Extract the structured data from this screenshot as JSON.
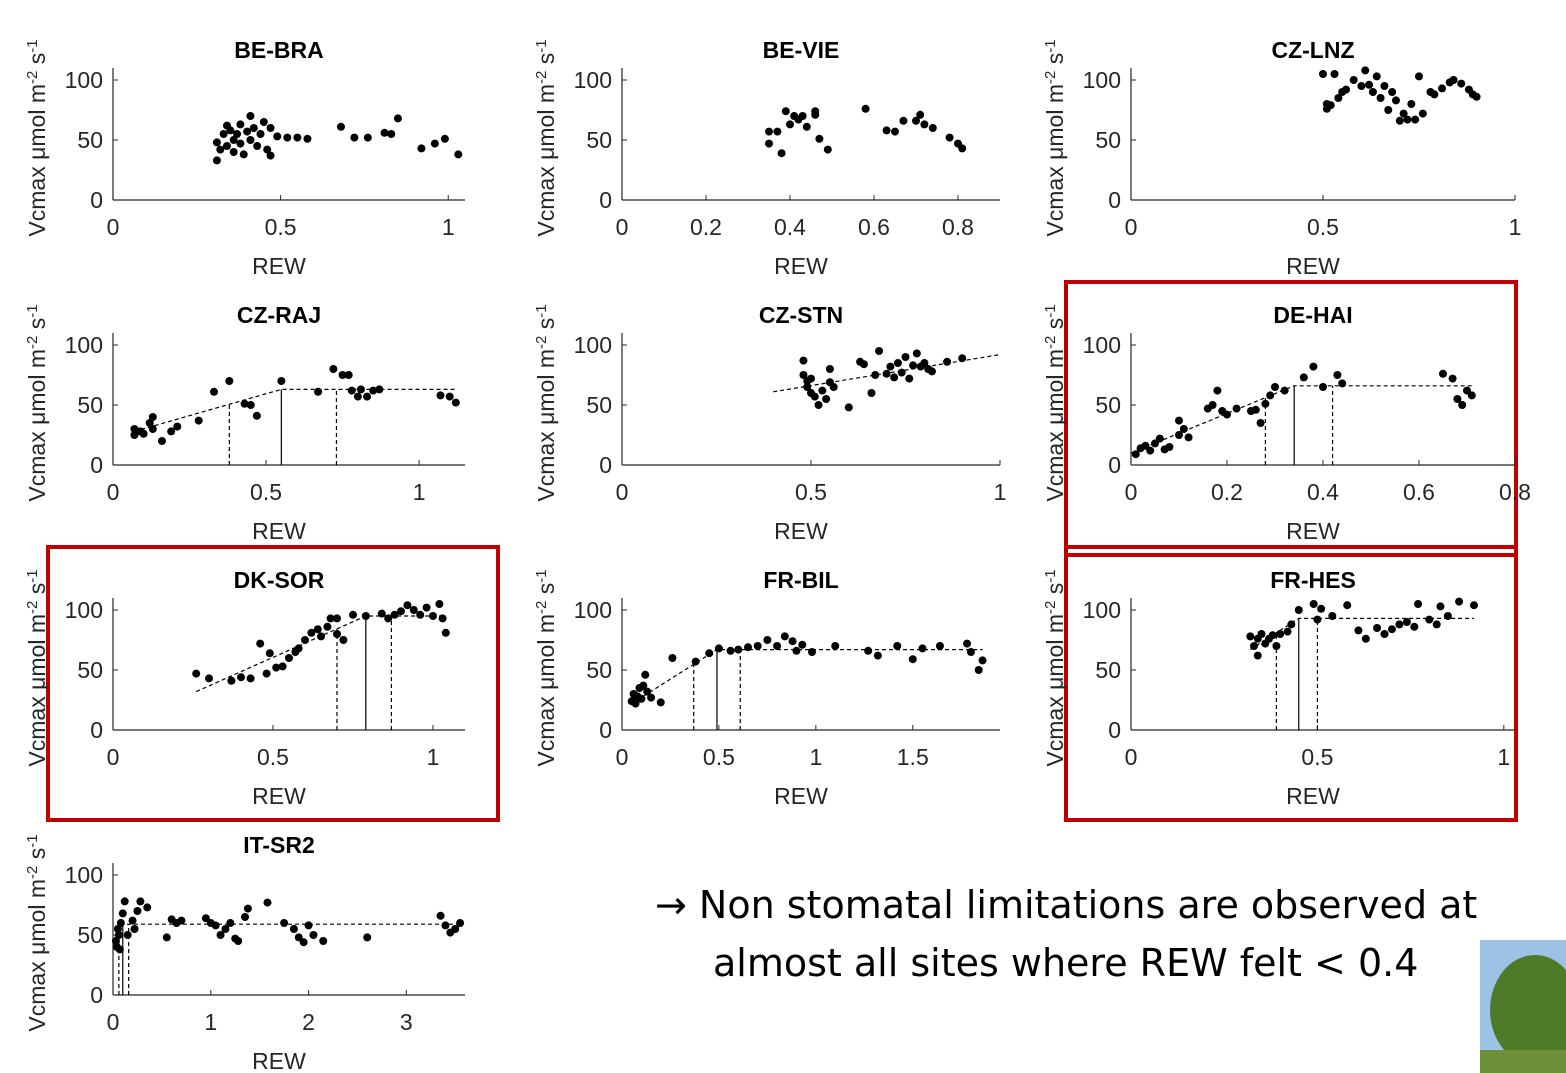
{
  "chart_data": [
    {
      "type": "scatter",
      "title": "BE-BRA",
      "xlabel": "REW",
      "ylabel": [
        {
          "text": "Vcmax μmol m"
        },
        {
          "text": "-2",
          "sup": true
        },
        {
          "text": " s"
        },
        {
          "text": "-1",
          "sup": true
        }
      ],
      "xlim": [
        0,
        1.05
      ],
      "xticks": [
        0,
        0.5,
        1
      ],
      "ylim": [
        0,
        110
      ],
      "yticks": [
        0,
        50,
        100
      ],
      "color": "#000000",
      "highlight": false,
      "x": [
        0.31,
        0.31,
        0.32,
        0.33,
        0.34,
        0.34,
        0.35,
        0.36,
        0.36,
        0.37,
        0.38,
        0.38,
        0.39,
        0.4,
        0.41,
        0.41,
        0.42,
        0.43,
        0.44,
        0.45,
        0.46,
        0.47,
        0.47,
        0.49,
        0.52,
        0.55,
        0.58,
        0.68,
        0.72,
        0.76,
        0.81,
        0.83,
        0.85,
        0.92,
        0.96,
        0.99,
        1.03
      ],
      "y": [
        33,
        48,
        42,
        55,
        62,
        45,
        58,
        50,
        40,
        55,
        63,
        47,
        38,
        57,
        70,
        50,
        60,
        45,
        55,
        65,
        42,
        60,
        37,
        53,
        52,
        52,
        51,
        61,
        52,
        52,
        56,
        55,
        68,
        43,
        47,
        51,
        38
      ]
    },
    {
      "type": "scatter",
      "title": "BE-VIE",
      "xlabel": "REW",
      "ylabel": [
        {
          "text": "Vcmax μmol m"
        },
        {
          "text": "-2",
          "sup": true
        },
        {
          "text": " s"
        },
        {
          "text": "-1",
          "sup": true
        }
      ],
      "xlim": [
        0,
        0.9
      ],
      "xticks": [
        0,
        0.2,
        0.4,
        0.6,
        0.8
      ],
      "ylim": [
        0,
        110
      ],
      "yticks": [
        0,
        50,
        100
      ],
      "color": "#000000",
      "highlight": false,
      "x": [
        0.35,
        0.35,
        0.37,
        0.38,
        0.39,
        0.4,
        0.41,
        0.42,
        0.43,
        0.44,
        0.46,
        0.46,
        0.47,
        0.49,
        0.58,
        0.63,
        0.65,
        0.67,
        0.7,
        0.71,
        0.72,
        0.74,
        0.78,
        0.8,
        0.81
      ],
      "y": [
        57,
        47,
        57,
        39,
        74,
        63,
        70,
        67,
        70,
        61,
        74,
        71,
        51,
        42,
        76,
        58,
        57,
        66,
        66,
        71,
        63,
        60,
        52,
        47,
        43
      ]
    },
    {
      "type": "scatter",
      "title": "CZ-LNZ",
      "xlabel": "REW",
      "ylabel": [
        {
          "text": "Vcmax μmol m"
        },
        {
          "text": "-2",
          "sup": true
        },
        {
          "text": " s"
        },
        {
          "text": "-1",
          "sup": true
        }
      ],
      "xlim": [
        0,
        1.0
      ],
      "xticks": [
        0,
        0.5,
        1
      ],
      "ylim": [
        0,
        110
      ],
      "yticks": [
        0,
        50,
        100
      ],
      "color": "#000000",
      "highlight": false,
      "x": [
        0.5,
        0.51,
        0.51,
        0.52,
        0.53,
        0.54,
        0.55,
        0.56,
        0.58,
        0.6,
        0.61,
        0.62,
        0.63,
        0.64,
        0.65,
        0.66,
        0.67,
        0.68,
        0.69,
        0.7,
        0.71,
        0.72,
        0.73,
        0.74,
        0.75,
        0.76,
        0.78,
        0.79,
        0.81,
        0.83,
        0.84,
        0.86,
        0.88,
        0.89,
        0.9
      ],
      "y": [
        105,
        80,
        76,
        79,
        105,
        85,
        90,
        92,
        100,
        95,
        108,
        96,
        90,
        103,
        85,
        95,
        75,
        90,
        83,
        66,
        72,
        67,
        80,
        67,
        103,
        72,
        90,
        88,
        93,
        98,
        100,
        97,
        92,
        88,
        86
      ]
    },
    {
      "type": "scatter",
      "title": "CZ-RAJ",
      "xlabel": "REW",
      "ylabel": [
        {
          "text": "Vcmax μmol m"
        },
        {
          "text": "-2",
          "sup": true
        },
        {
          "text": " s"
        },
        {
          "text": "-1",
          "sup": true
        }
      ],
      "xlim": [
        0,
        1.15
      ],
      "xticks": [
        0,
        0.5,
        1
      ],
      "ylim": [
        0,
        110
      ],
      "yticks": [
        0,
        50,
        100
      ],
      "color": "#000000",
      "highlight": false,
      "x": [
        0.07,
        0.07,
        0.09,
        0.1,
        0.12,
        0.13,
        0.13,
        0.16,
        0.19,
        0.21,
        0.28,
        0.33,
        0.38,
        0.43,
        0.45,
        0.47,
        0.55,
        0.67,
        0.72,
        0.75,
        0.77,
        0.78,
        0.8,
        0.81,
        0.83,
        0.85,
        0.87,
        1.07,
        1.1,
        1.12
      ],
      "y": [
        30,
        25,
        28,
        26,
        35,
        40,
        30,
        20,
        28,
        32,
        37,
        61,
        70,
        51,
        50,
        41,
        70,
        61,
        80,
        75,
        75,
        62,
        57,
        63,
        57,
        62,
        63,
        58,
        57,
        52
      ],
      "fit": {
        "x": [
          0.07,
          0.55,
          1.12
        ],
        "y": [
          28,
          63,
          63
        ]
      },
      "thresholds": [
        {
          "x": 0.38,
          "style": "dashed"
        },
        {
          "x": 0.55,
          "style": "solid"
        },
        {
          "x": 0.73,
          "style": "dashed"
        }
      ]
    },
    {
      "type": "scatter",
      "title": "CZ-STN",
      "xlabel": "REW",
      "ylabel": [
        {
          "text": "Vcmax μmol m"
        },
        {
          "text": "-2",
          "sup": true
        },
        {
          "text": " s"
        },
        {
          "text": "-1",
          "sup": true
        }
      ],
      "xlim": [
        0,
        1.0
      ],
      "xticks": [
        0,
        0.5,
        1
      ],
      "ylim": [
        0,
        110
      ],
      "yticks": [
        0,
        50,
        100
      ],
      "color": "#000000",
      "highlight": false,
      "x": [
        0.48,
        0.48,
        0.49,
        0.49,
        0.5,
        0.5,
        0.51,
        0.52,
        0.53,
        0.54,
        0.55,
        0.55,
        0.56,
        0.6,
        0.63,
        0.64,
        0.66,
        0.67,
        0.68,
        0.7,
        0.71,
        0.72,
        0.73,
        0.74,
        0.75,
        0.76,
        0.77,
        0.78,
        0.79,
        0.8,
        0.81,
        0.82,
        0.86,
        0.9
      ],
      "y": [
        87,
        75,
        70,
        65,
        72,
        60,
        57,
        50,
        62,
        55,
        69,
        80,
        65,
        48,
        86,
        84,
        60,
        75,
        95,
        76,
        82,
        73,
        85,
        77,
        90,
        72,
        83,
        93,
        82,
        85,
        80,
        78,
        86,
        89
      ],
      "fit": {
        "x": [
          0.4,
          1.0
        ],
        "y": [
          61,
          92
        ]
      }
    },
    {
      "type": "scatter",
      "title": "DE-HAI",
      "xlabel": "REW",
      "ylabel": [
        {
          "text": "Vcmax μmol m"
        },
        {
          "text": "-2",
          "sup": true
        },
        {
          "text": " s"
        },
        {
          "text": "-1",
          "sup": true
        }
      ],
      "xlim": [
        0,
        0.8
      ],
      "xticks": [
        0,
        0.2,
        0.4,
        0.6,
        0.8
      ],
      "ylim": [
        0,
        110
      ],
      "yticks": [
        0,
        50,
        100
      ],
      "color": "#000000",
      "highlight": true,
      "x": [
        0.01,
        0.02,
        0.03,
        0.04,
        0.05,
        0.06,
        0.07,
        0.08,
        0.1,
        0.1,
        0.11,
        0.12,
        0.16,
        0.17,
        0.18,
        0.19,
        0.2,
        0.22,
        0.25,
        0.26,
        0.27,
        0.28,
        0.29,
        0.3,
        0.32,
        0.36,
        0.38,
        0.4,
        0.43,
        0.44,
        0.65,
        0.67,
        0.68,
        0.69,
        0.7,
        0.71
      ],
      "y": [
        9,
        14,
        16,
        12,
        18,
        22,
        13,
        15,
        25,
        37,
        30,
        23,
        47,
        50,
        62,
        45,
        42,
        47,
        45,
        46,
        35,
        51,
        58,
        65,
        62,
        73,
        82,
        65,
        75,
        68,
        76,
        72,
        55,
        50,
        62,
        58
      ],
      "fit": {
        "x": [
          0,
          0.34,
          0.71
        ],
        "y": [
          10,
          66,
          66
        ]
      },
      "thresholds": [
        {
          "x": 0.28,
          "style": "dashed"
        },
        {
          "x": 0.34,
          "style": "solid"
        },
        {
          "x": 0.42,
          "style": "dashed"
        }
      ]
    },
    {
      "type": "scatter",
      "title": "DK-SOR",
      "xlabel": "REW",
      "ylabel": [
        {
          "text": "Vcmax μmol m"
        },
        {
          "text": "-2",
          "sup": true
        },
        {
          "text": " s"
        },
        {
          "text": "-1",
          "sup": true
        }
      ],
      "xlim": [
        0,
        1.1
      ],
      "xticks": [
        0,
        0.5,
        1
      ],
      "ylim": [
        0,
        110
      ],
      "yticks": [
        0,
        50,
        100
      ],
      "color": "#000000",
      "highlight": true,
      "x": [
        0.26,
        0.3,
        0.37,
        0.4,
        0.43,
        0.46,
        0.48,
        0.49,
        0.51,
        0.53,
        0.55,
        0.57,
        0.58,
        0.6,
        0.62,
        0.64,
        0.65,
        0.67,
        0.68,
        0.7,
        0.7,
        0.72,
        0.75,
        0.79,
        0.84,
        0.86,
        0.88,
        0.9,
        0.92,
        0.94,
        0.96,
        0.98,
        1.0,
        1.02,
        1.03,
        1.04
      ],
      "y": [
        47,
        43,
        41,
        44,
        43,
        72,
        47,
        64,
        52,
        53,
        60,
        65,
        68,
        75,
        81,
        84,
        78,
        86,
        93,
        80,
        93,
        75,
        96,
        95,
        97,
        93,
        96,
        99,
        104,
        100,
        96,
        102,
        95,
        105,
        93,
        81
      ],
      "fit": {
        "x": [
          0.26,
          0.79,
          1.04
        ],
        "y": [
          32,
          95,
          95
        ]
      },
      "thresholds": [
        {
          "x": 0.7,
          "style": "dashed"
        },
        {
          "x": 0.79,
          "style": "solid"
        },
        {
          "x": 0.87,
          "style": "dashed"
        }
      ]
    },
    {
      "type": "scatter",
      "title": "FR-BIL",
      "xlabel": "REW",
      "ylabel": [
        {
          "text": "Vcmax μmol m"
        },
        {
          "text": "-2",
          "sup": true
        },
        {
          "text": " s"
        },
        {
          "text": "-1",
          "sup": true
        }
      ],
      "xlim": [
        0,
        1.95
      ],
      "xticks": [
        0,
        0.5,
        1,
        1.5
      ],
      "ylim": [
        0,
        110
      ],
      "yticks": [
        0,
        50,
        100
      ],
      "color": "#000000",
      "highlight": false,
      "x": [
        0.05,
        0.06,
        0.07,
        0.08,
        0.09,
        0.1,
        0.11,
        0.12,
        0.13,
        0.15,
        0.2,
        0.26,
        0.38,
        0.45,
        0.5,
        0.56,
        0.6,
        0.65,
        0.7,
        0.75,
        0.8,
        0.84,
        0.88,
        0.9,
        0.93,
        0.98,
        1.1,
        1.27,
        1.32,
        1.42,
        1.5,
        1.55,
        1.64,
        1.78,
        1.8,
        1.84,
        1.86
      ],
      "y": [
        24,
        30,
        22,
        28,
        35,
        26,
        37,
        46,
        32,
        27,
        23,
        60,
        57,
        64,
        68,
        66,
        67,
        69,
        70,
        75,
        70,
        78,
        74,
        66,
        71,
        65,
        70,
        66,
        62,
        70,
        59,
        68,
        70,
        72,
        65,
        50,
        58
      ],
      "fit": {
        "x": [
          0.05,
          0.49,
          1.86
        ],
        "y": [
          22,
          67,
          67
        ]
      },
      "thresholds": [
        {
          "x": 0.37,
          "style": "dashed"
        },
        {
          "x": 0.49,
          "style": "solid"
        },
        {
          "x": 0.61,
          "style": "dashed"
        }
      ]
    },
    {
      "type": "scatter",
      "title": "FR-HES",
      "xlabel": "REW",
      "ylabel": [
        {
          "text": "Vcmax μmol m"
        },
        {
          "text": "-2",
          "sup": true
        },
        {
          "text": " s"
        },
        {
          "text": "-1",
          "sup": true
        }
      ],
      "xlim": [
        0,
        1.03
      ],
      "xticks": [
        0,
        0.5,
        1
      ],
      "ylim": [
        0,
        110
      ],
      "yticks": [
        0,
        50,
        100
      ],
      "color": "#000000",
      "highlight": true,
      "x": [
        0.32,
        0.33,
        0.34,
        0.34,
        0.35,
        0.36,
        0.37,
        0.38,
        0.39,
        0.4,
        0.42,
        0.43,
        0.45,
        0.49,
        0.5,
        0.51,
        0.54,
        0.58,
        0.61,
        0.63,
        0.66,
        0.68,
        0.7,
        0.72,
        0.74,
        0.76,
        0.77,
        0.8,
        0.82,
        0.83,
        0.85,
        0.88,
        0.92
      ],
      "y": [
        78,
        70,
        62,
        76,
        80,
        72,
        76,
        79,
        70,
        80,
        82,
        88,
        100,
        105,
        92,
        101,
        95,
        104,
        83,
        76,
        85,
        80,
        84,
        88,
        90,
        86,
        105,
        92,
        88,
        103,
        95,
        107,
        104
      ],
      "fit": {
        "x": [
          0.32,
          0.45,
          0.92
        ],
        "y": [
          67,
          93,
          93
        ]
      },
      "thresholds": [
        {
          "x": 0.39,
          "style": "dashed"
        },
        {
          "x": 0.45,
          "style": "solid"
        },
        {
          "x": 0.5,
          "style": "dashed"
        }
      ]
    },
    {
      "type": "scatter",
      "title": "IT-SR2",
      "xlabel": "REW",
      "ylabel": [
        {
          "text": "Vcmax μmol m"
        },
        {
          "text": "-2",
          "sup": true
        },
        {
          "text": " s"
        },
        {
          "text": "-1",
          "sup": true
        }
      ],
      "xlim": [
        0,
        3.6
      ],
      "xticks": [
        0,
        1,
        2,
        3
      ],
      "ylim": [
        0,
        110
      ],
      "yticks": [
        0,
        50,
        100
      ],
      "color": "#000000",
      "highlight": false,
      "x": [
        0.03,
        0.04,
        0.05,
        0.06,
        0.07,
        0.08,
        0.1,
        0.12,
        0.15,
        0.2,
        0.22,
        0.25,
        0.28,
        0.35,
        0.55,
        0.6,
        0.65,
        0.7,
        0.95,
        1.0,
        1.05,
        1.1,
        1.15,
        1.2,
        1.25,
        1.28,
        1.35,
        1.38,
        1.58,
        1.75,
        1.85,
        1.9,
        1.95,
        2.0,
        2.05,
        2.15,
        2.6,
        3.35,
        3.4,
        3.45,
        3.5,
        3.55
      ],
      "y": [
        45,
        40,
        55,
        50,
        38,
        60,
        68,
        78,
        50,
        62,
        55,
        70,
        78,
        73,
        48,
        63,
        60,
        62,
        64,
        60,
        58,
        50,
        55,
        60,
        47,
        45,
        65,
        72,
        77,
        60,
        55,
        48,
        44,
        58,
        50,
        45,
        48,
        66,
        58,
        52,
        55,
        60
      ],
      "fit": {
        "x": [
          0.03,
          0.1,
          3.55
        ],
        "y": [
          40,
          59,
          59
        ]
      },
      "thresholds": [
        {
          "x": 0.06,
          "style": "dashed"
        },
        {
          "x": 0.1,
          "style": "solid"
        },
        {
          "x": 0.16,
          "style": "dashed"
        }
      ]
    }
  ],
  "annotation": {
    "lines": [
      "→ Non stomatal limitations are observed at",
      "almost all sites where REW felt < 0.4"
    ]
  }
}
